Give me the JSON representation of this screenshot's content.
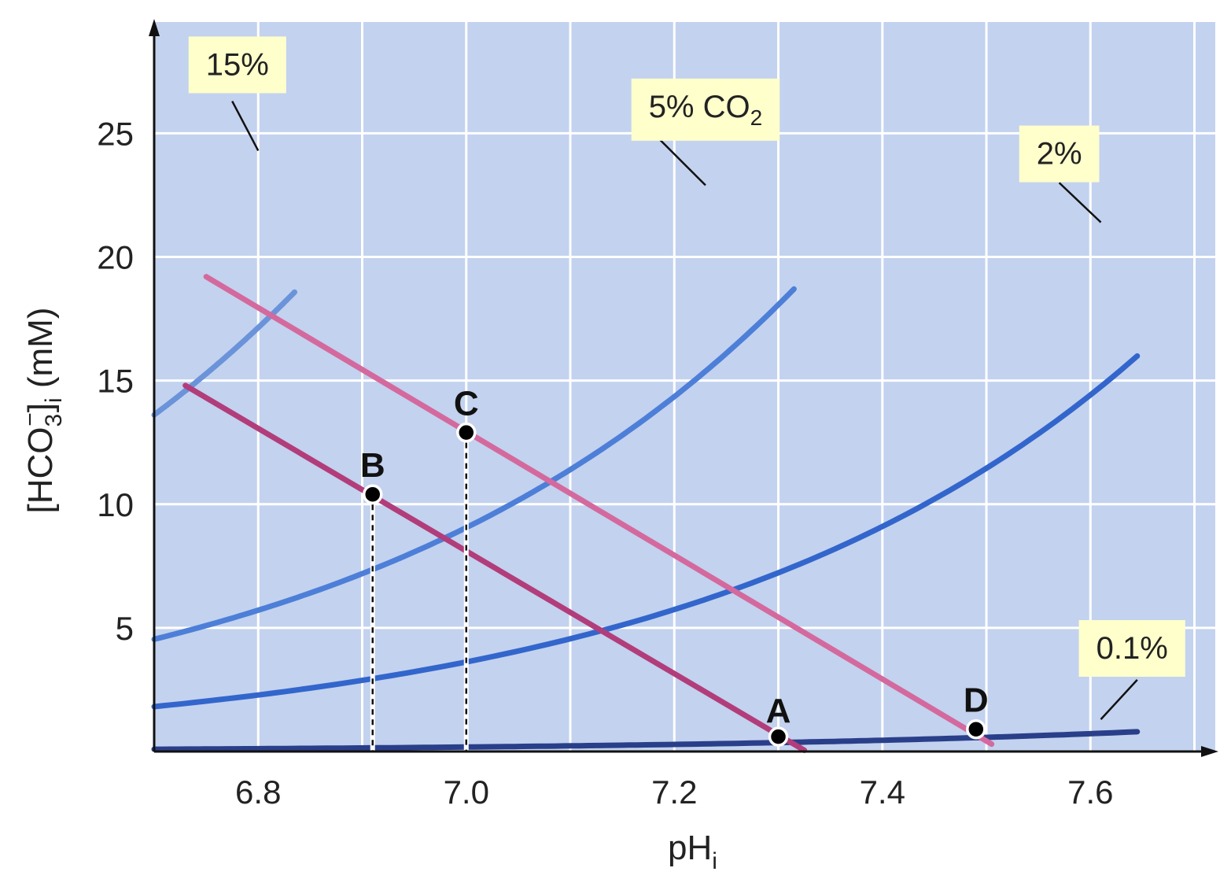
{
  "chart_data": {
    "type": "line",
    "xlabel": "pH",
    "xlabel_sub": "i",
    "ylabel": "[HCO3−]i (mM)",
    "ylabel_parts": {
      "open": "[HCO",
      "sub3": "3",
      "sup": "−",
      "close": "]",
      "subi": "i",
      "rest": " (mM)"
    },
    "xlim": [
      6.7,
      7.72
    ],
    "ylim": [
      0,
      29.5
    ],
    "x_ticks": [
      6.8,
      7.0,
      7.2,
      7.4,
      7.6
    ],
    "x_tick_labels": [
      "6.8",
      "7.0",
      "7.2",
      "7.4",
      "7.6"
    ],
    "y_ticks": [
      5,
      10,
      15,
      20,
      25
    ],
    "y_tick_labels": [
      "5",
      "10",
      "15",
      "20",
      "25"
    ],
    "grid": true,
    "colors": {
      "plot_bg": "#c3d2ee",
      "grid": "#ffffff",
      "axis": "#111111",
      "label_box": "#ffffcc",
      "line_15": "#6a93da",
      "line_5": "#4d7fd8",
      "line_2": "#3366cc",
      "line_01": "#2a3f8a",
      "buffer_upper": "#d4699e",
      "buffer_lower": "#b23d7b",
      "point_fill": "#000000",
      "point_stroke": "#ffffff",
      "drop_line": "#111111"
    },
    "isopleths": [
      {
        "label": "15%",
        "pco2_pct": 15,
        "x_range": [
          6.7,
          6.835
        ],
        "color_key": "line_15",
        "label_pos_data": [
          6.78,
          27.8
        ],
        "leader": [
          [
            6.775,
            26.3
          ],
          [
            6.8,
            24.3
          ]
        ]
      },
      {
        "label_main": "5% CO",
        "label_sub": "2",
        "pco2_pct": 5,
        "x_range": [
          6.7,
          7.315
        ],
        "color_key": "line_5",
        "label_pos_data": [
          7.23,
          26.1
        ],
        "leader": [
          [
            7.18,
            25.0
          ],
          [
            7.23,
            22.9
          ]
        ]
      },
      {
        "label": "2%",
        "pco2_pct": 2,
        "x_range": [
          6.7,
          7.645
        ],
        "color_key": "line_2",
        "label_pos_data": [
          7.57,
          24.2
        ],
        "leader": [
          [
            7.57,
            23.0
          ],
          [
            7.61,
            21.4
          ]
        ]
      },
      {
        "label": "0.1%",
        "pco2_pct": 0.1,
        "x_range": [
          6.7,
          7.645
        ],
        "color_key": "line_01",
        "label_pos_data": [
          7.64,
          4.2
        ],
        "leader": [
          [
            7.645,
            2.9
          ],
          [
            7.61,
            1.3
          ]
        ]
      }
    ],
    "buffer_lines": [
      {
        "name": "upper",
        "points": [
          [
            6.75,
            19.2
          ],
          [
            7.505,
            0.3
          ]
        ],
        "color_key": "buffer_upper"
      },
      {
        "name": "lower",
        "points": [
          [
            6.73,
            14.8
          ],
          [
            7.325,
            0.05
          ]
        ],
        "color_key": "buffer_lower"
      }
    ],
    "points": [
      {
        "label": "A",
        "x": 7.3,
        "y": 0.6,
        "label_offset": [
          0,
          -18
        ]
      },
      {
        "label": "B",
        "x": 6.91,
        "y": 10.4,
        "label_offset": [
          0,
          -22
        ]
      },
      {
        "label": "C",
        "x": 7.0,
        "y": 12.9,
        "label_offset": [
          0,
          -22
        ]
      },
      {
        "label": "D",
        "x": 7.49,
        "y": 0.9,
        "label_offset": [
          0,
          -22
        ]
      }
    ],
    "drop_lines_from": [
      "B",
      "C"
    ]
  }
}
